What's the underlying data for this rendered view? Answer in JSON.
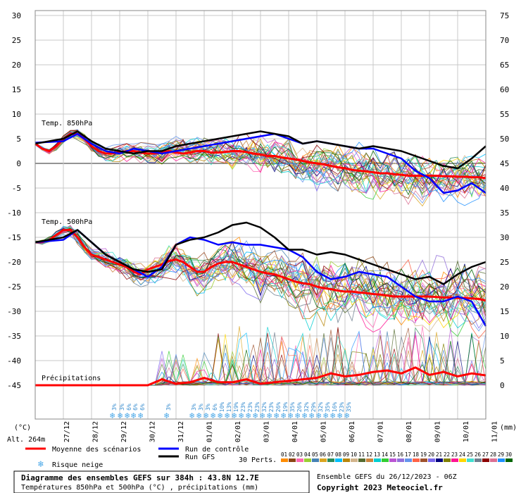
{
  "chart_data": {
    "type": "line",
    "title": "Diagramme des ensembles GEFS sur 384h : 43.8N 12.7E",
    "subtitle": "Températures 850hPa et 500hPa (°C) , précipitations (mm)",
    "run_info": "Ensemble GEFS du 26/12/2023 - 06Z",
    "copyright": "Copyright 2023 Meteociel.fr",
    "altitude": "Alt. 264m",
    "left_unit": "(°C)",
    "right_unit": "(mm)",
    "left_ticks": [
      "30",
      "25",
      "20",
      "15",
      "10",
      "5",
      "0",
      "-5",
      "-10",
      "-15",
      "-20",
      "-25",
      "-30",
      "-35",
      "-40",
      "-45"
    ],
    "right_ticks": [
      "75",
      "70",
      "65",
      "60",
      "55",
      "50",
      "45",
      "40",
      "35",
      "30",
      "25",
      "20",
      "15",
      "10",
      "5",
      "0"
    ],
    "ylim_left": [
      -45,
      30
    ],
    "ylim_right": [
      0,
      75
    ],
    "x_labels": [
      "27/12",
      "28/12",
      "29/12",
      "30/12",
      "31/12",
      "01/01",
      "02/01",
      "03/01",
      "04/01",
      "05/01",
      "06/01",
      "07/01",
      "08/01",
      "09/01",
      "10/01",
      "11/01"
    ],
    "labels": {
      "t850": "Temp. 850hPa",
      "t500": "Temp. 500hPa",
      "precip": "Précipitations"
    },
    "legend": {
      "mean": "Moyenne des scénarios",
      "control": "Run de contrôle",
      "gfs": "Run GFS",
      "snow": "Risque neige",
      "perts": "30 Perts."
    },
    "member_ids": [
      "01",
      "02",
      "03",
      "04",
      "05",
      "06",
      "07",
      "08",
      "09",
      "10",
      "11",
      "12",
      "13",
      "14",
      "15",
      "16",
      "17",
      "18",
      "19",
      "20",
      "21",
      "22",
      "23",
      "24",
      "25",
      "26",
      "27",
      "28",
      "29",
      "30"
    ],
    "member_colors": [
      "#ff8c00",
      "#8b4513",
      "#ff69b4",
      "#9acd32",
      "#4682b4",
      "#daa520",
      "#2e8b57",
      "#00bfff",
      "#b8860b",
      "#d2b48c",
      "#556b2f",
      "#cd853f",
      "#00ced1",
      "#32cd32",
      "#ba55d3",
      "#9370db",
      "#6495ed",
      "#ff6347",
      "#a0522d",
      "#7b68ee",
      "#000080",
      "#808000",
      "#ff1493",
      "#ffd700",
      "#40e0d0",
      "#708090",
      "#8b0000",
      "#db7093",
      "#1e90ff",
      "#006400"
    ],
    "snow_markers": [
      {
        "x": 11.2,
        "pct": "3%"
      },
      {
        "x": 12.3,
        "pct": "3%"
      },
      {
        "x": 13.3,
        "pct": "6%"
      },
      {
        "x": 14.2,
        "pct": "6%"
      },
      {
        "x": 15.2,
        "pct": "6%"
      },
      {
        "x": 18.9,
        "pct": "3%"
      },
      {
        "x": 22.5,
        "pct": "3%"
      },
      {
        "x": 23.5,
        "pct": "3%"
      },
      {
        "x": 24.5,
        "pct": "3%"
      },
      {
        "x": 25.5,
        "pct": "6%"
      },
      {
        "x": 26.5,
        "pct": "10%"
      },
      {
        "x": 27.5,
        "pct": "13%"
      },
      {
        "x": 28.5,
        "pct": "19%"
      },
      {
        "x": 29.5,
        "pct": "23%"
      },
      {
        "x": 30.5,
        "pct": "23%"
      },
      {
        "x": 31.5,
        "pct": "23%"
      },
      {
        "x": 32.5,
        "pct": "32%"
      },
      {
        "x": 33.5,
        "pct": "23%"
      },
      {
        "x": 34.5,
        "pct": "26%"
      },
      {
        "x": 35.5,
        "pct": "19%"
      },
      {
        "x": 36.5,
        "pct": "35%"
      },
      {
        "x": 37.5,
        "pct": "26%"
      },
      {
        "x": 38.5,
        "pct": "32%"
      },
      {
        "x": 39.5,
        "pct": "29%"
      },
      {
        "x": 40.5,
        "pct": "32%"
      },
      {
        "x": 41.5,
        "pct": "35%"
      },
      {
        "x": 42.5,
        "pct": "16%"
      },
      {
        "x": 43.5,
        "pct": "23%"
      },
      {
        "x": 44.5,
        "pct": "35%"
      }
    ],
    "series": [
      {
        "name": "Moyenne des scénarios (850hPa)",
        "color": "#ff0000",
        "x": [
          0,
          1,
          2,
          3,
          4,
          5,
          6,
          7,
          8,
          9,
          10,
          11,
          12,
          13,
          14,
          15,
          16,
          17,
          18,
          19,
          20,
          21,
          22,
          23,
          24,
          25,
          26,
          27,
          28,
          29,
          30,
          31,
          32,
          33,
          34,
          35,
          36,
          37,
          38,
          39,
          40,
          41,
          42,
          43,
          44,
          45,
          46,
          47,
          48,
          49,
          50,
          51,
          52,
          53,
          54,
          55,
          56,
          57,
          58,
          59,
          60,
          61,
          62,
          63,
          64
        ],
        "values": [
          4.0,
          3.0,
          2.5,
          3.5,
          5.0,
          6.0,
          6.0,
          5.0,
          3.5,
          2.5,
          2.0,
          2.0,
          2.3,
          2.5,
          2.5,
          2.2,
          2.0,
          2.0,
          2.2,
          2.5,
          2.2,
          2.0,
          2.2,
          2.5,
          2.5,
          2.2,
          2.2,
          2.3,
          2.5,
          2.5,
          2.3,
          2.0,
          1.8,
          1.5,
          1.5,
          1.2,
          1.0,
          0.8,
          0.5,
          0.2,
          0.0,
          -0.2,
          -0.5,
          -0.8,
          -1.0,
          -1.3,
          -1.5,
          -1.6,
          -1.8,
          -2.0,
          -2.0,
          -2.2,
          -2.3,
          -2.5,
          -2.5,
          -2.5,
          -2.5,
          -2.5,
          -2.6,
          -2.6,
          -2.7,
          -2.7,
          -2.8,
          -2.8,
          -3.0
        ]
      },
      {
        "name": "Moyenne des scénarios (500hPa)",
        "color": "#ff0000",
        "x": [
          0,
          1,
          2,
          3,
          4,
          5,
          6,
          7,
          8,
          9,
          10,
          11,
          12,
          13,
          14,
          15,
          16,
          17,
          18,
          19,
          20,
          21,
          22,
          23,
          24,
          25,
          26,
          27,
          28,
          29,
          30,
          31,
          32,
          33,
          34,
          35,
          36,
          37,
          38,
          39,
          40,
          41,
          42,
          43,
          44,
          45,
          46,
          47,
          48,
          49,
          50,
          51,
          52,
          53,
          54,
          55,
          56,
          57,
          58,
          59,
          60,
          61,
          62,
          63,
          64
        ],
        "values": [
          -16.0,
          -16.0,
          -15.5,
          -14.5,
          -13.5,
          -13.5,
          -15.0,
          -17.0,
          -18.5,
          -19.0,
          -19.5,
          -20.0,
          -20.5,
          -21.0,
          -22.0,
          -22.5,
          -21.5,
          -21.0,
          -20.5,
          -19.8,
          -19.5,
          -20.0,
          -21.0,
          -22.0,
          -22.0,
          -21.0,
          -20.3,
          -20.0,
          -20.0,
          -20.5,
          -21.0,
          -21.5,
          -22.0,
          -22.3,
          -22.5,
          -23.0,
          -23.5,
          -24.0,
          -24.3,
          -24.5,
          -25.0,
          -25.3,
          -25.5,
          -25.8,
          -26.0,
          -26.0,
          -26.2,
          -26.3,
          -26.5,
          -26.6,
          -26.8,
          -27.0,
          -27.0,
          -27.0,
          -27.0,
          -27.0,
          -27.0,
          -27.1,
          -27.2,
          -27.2,
          -27.3,
          -27.3,
          -27.4,
          -27.5,
          -27.8
        ]
      },
      {
        "name": "Run de contrôle (850hPa)",
        "color": "#0000ff",
        "x": [
          0,
          4,
          6,
          8,
          10,
          12,
          14,
          16,
          18,
          20,
          22,
          24,
          26,
          28,
          30,
          32,
          34,
          36,
          38,
          40,
          42,
          44,
          46,
          48,
          50,
          52,
          54,
          56,
          58,
          60,
          62,
          64
        ],
        "values": [
          4.2,
          4.5,
          6.0,
          4.0,
          2.5,
          2.0,
          3.0,
          2.5,
          2.0,
          2.5,
          3.0,
          3.5,
          4.0,
          4.5,
          5.0,
          5.5,
          6.0,
          5.0,
          4.0,
          4.5,
          4.0,
          3.5,
          3.0,
          3.0,
          2.0,
          1.0,
          -1.5,
          -3.0,
          -6.0,
          -5.5,
          -4.0,
          -6.0
        ]
      },
      {
        "name": "Run de contrôle (500hPa)",
        "color": "#0000ff",
        "x": [
          0,
          4,
          6,
          8,
          10,
          12,
          14,
          16,
          18,
          20,
          22,
          24,
          26,
          28,
          30,
          32,
          34,
          36,
          38,
          40,
          42,
          44,
          46,
          48,
          50,
          52,
          54,
          56,
          58,
          60,
          62,
          64
        ],
        "values": [
          -16.0,
          -15.5,
          -13.5,
          -16.0,
          -18.5,
          -20.0,
          -21.5,
          -23.0,
          -21.0,
          -16.5,
          -15.0,
          -15.5,
          -16.5,
          -16.0,
          -16.5,
          -16.5,
          -17.0,
          -17.5,
          -19.0,
          -22.0,
          -23.5,
          -23.0,
          -22.0,
          -22.5,
          -23.0,
          -25.0,
          -27.0,
          -28.0,
          -28.0,
          -27.0,
          -28.0,
          -33.0
        ]
      },
      {
        "name": "Run GFS (850hPa)",
        "color": "#000000",
        "x": [
          0,
          4,
          6,
          8,
          10,
          12,
          14,
          16,
          18,
          20,
          22,
          24,
          26,
          28,
          30,
          32,
          34,
          36,
          38,
          40,
          42,
          44,
          46,
          48,
          50,
          52,
          54,
          56,
          58,
          60,
          62,
          64
        ],
        "values": [
          4.0,
          5.0,
          6.5,
          4.5,
          3.0,
          2.5,
          2.0,
          2.5,
          2.5,
          3.5,
          4.0,
          4.5,
          5.0,
          5.5,
          6.0,
          6.5,
          6.0,
          5.5,
          4.0,
          4.5,
          4.0,
          3.5,
          3.0,
          3.5,
          3.0,
          2.5,
          1.5,
          0.5,
          -0.5,
          -1.0,
          1.0,
          3.5
        ]
      },
      {
        "name": "Run GFS (500hPa)",
        "color": "#000000",
        "x": [
          0,
          4,
          6,
          8,
          10,
          12,
          14,
          16,
          18,
          20,
          22,
          24,
          26,
          28,
          30,
          32,
          34,
          36,
          38,
          40,
          42,
          44,
          46,
          48,
          50,
          52,
          54,
          56,
          58,
          60,
          62,
          64
        ],
        "values": [
          -16.0,
          -15.0,
          -13.5,
          -16.0,
          -18.5,
          -20.0,
          -21.5,
          -22.0,
          -21.5,
          -16.5,
          -15.5,
          -15.0,
          -14.0,
          -12.5,
          -12.0,
          -13.0,
          -15.0,
          -17.5,
          -17.5,
          -18.5,
          -18.0,
          -18.5,
          -19.5,
          -20.5,
          -21.5,
          -22.5,
          -23.5,
          -23.0,
          -24.5,
          -22.5,
          -21.0,
          -20.0
        ]
      },
      {
        "name": "Moyenne des scénarios (précipitations)",
        "color": "#ff0000",
        "x": [
          0,
          2,
          4,
          6,
          8,
          10,
          12,
          14,
          16,
          18,
          20,
          22,
          24,
          26,
          28,
          30,
          32,
          34,
          36,
          38,
          40,
          42,
          44,
          46,
          48,
          50,
          52,
          54,
          56,
          58,
          60,
          62,
          64
        ],
        "values": [
          0.0,
          0.0,
          0.0,
          0.0,
          0.0,
          0.0,
          0.0,
          0.0,
          0.0,
          1.2,
          0.3,
          0.6,
          1.5,
          0.6,
          0.6,
          1.2,
          0.3,
          0.6,
          0.9,
          1.2,
          1.5,
          2.4,
          1.8,
          2.1,
          2.7,
          3.0,
          2.4,
          3.6,
          2.1,
          2.7,
          1.8,
          2.4,
          2.0
        ]
      }
    ]
  }
}
